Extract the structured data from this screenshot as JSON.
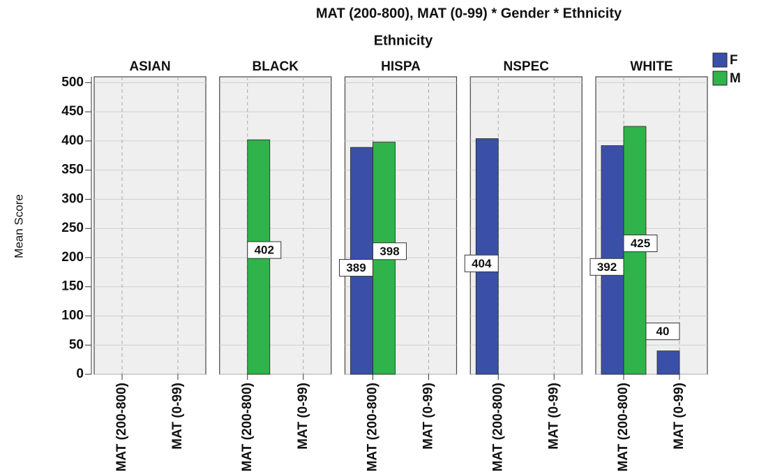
{
  "chart_data": {
    "type": "bar",
    "title": "MAT (200-800), MAT (0-99) * Gender * Ethnicity",
    "facet_label": "Ethnicity",
    "ylabel": "Mean Score",
    "categories": [
      "MAT (200-800)",
      "MAT (0-99)"
    ],
    "ylim": [
      0,
      510
    ],
    "yticks": [
      0,
      50,
      100,
      150,
      200,
      250,
      300,
      350,
      400,
      450,
      500
    ],
    "grid": true,
    "legend": "top-right",
    "series": [
      {
        "name": "F",
        "color": "#3a50a8"
      },
      {
        "name": "M",
        "color": "#2fb34a"
      }
    ],
    "panels": [
      {
        "title": "ASIAN",
        "series": [
          {
            "values": [
              null,
              null
            ]
          },
          {
            "values": [
              null,
              null
            ]
          }
        ]
      },
      {
        "title": "BLACK",
        "series": [
          {
            "values": [
              null,
              null
            ]
          },
          {
            "values": [
              402,
              null
            ]
          }
        ]
      },
      {
        "title": "HISPA",
        "series": [
          {
            "values": [
              389,
              null
            ]
          },
          {
            "values": [
              398,
              null
            ]
          }
        ]
      },
      {
        "title": "NSPEC",
        "series": [
          {
            "values": [
              404,
              null
            ]
          },
          {
            "values": [
              null,
              null
            ]
          }
        ]
      },
      {
        "title": "WHITE",
        "series": [
          {
            "values": [
              392,
              40
            ]
          },
          {
            "values": [
              425,
              null
            ]
          }
        ]
      }
    ]
  }
}
